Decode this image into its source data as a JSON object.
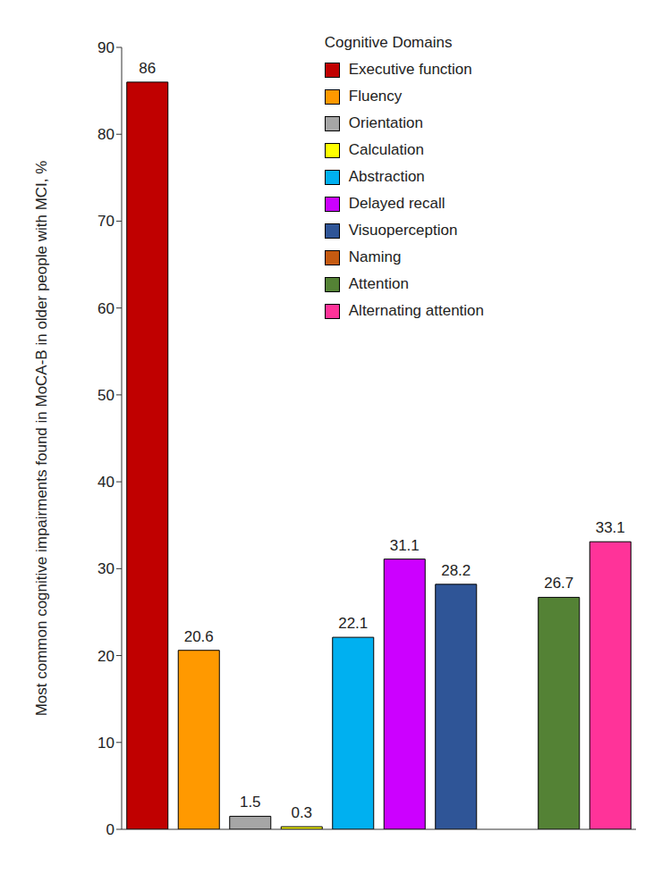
{
  "chart_data": {
    "type": "bar",
    "y_label": "Most common cognitive impairments found in MoCA-B in older people with MCI, %",
    "legend_title": "Cognitive Domains",
    "categories": [
      "Executive function",
      "Fluency",
      "Orientation",
      "Calculation",
      "Abstraction",
      "Delayed recall",
      "Visuoperception",
      "Naming",
      "Attention",
      "Alternating attention"
    ],
    "values": [
      86,
      20.6,
      1.5,
      0.3,
      22.1,
      31.1,
      28.2,
      0,
      26.7,
      33.1
    ],
    "colors": [
      "#c00000",
      "#ff9900",
      "#a6a6a6",
      "#ffff00",
      "#00b0f0",
      "#cc00ff",
      "#2f5597",
      "#c55a11",
      "#548235",
      "#ff3399"
    ],
    "ylim": [
      0,
      90
    ],
    "yticks": [
      0,
      10,
      20,
      30,
      40,
      50,
      60,
      70,
      80,
      90
    ],
    "grid": false,
    "data_labels": true,
    "tick_labels": "y",
    "legend": "upper right"
  }
}
